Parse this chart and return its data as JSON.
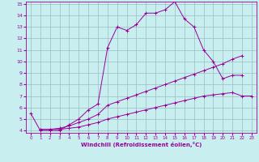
{
  "background_color": "#c8eef0",
  "grid_color": "#9bbcbe",
  "line_color": "#990099",
  "xlim": [
    -0.5,
    23.5
  ],
  "ylim": [
    3.8,
    15.2
  ],
  "xlabel": "Windchill (Refroidissement éolien,°C)",
  "yticks": [
    4,
    5,
    6,
    7,
    8,
    9,
    10,
    11,
    12,
    13,
    14,
    15
  ],
  "xticks": [
    0,
    1,
    2,
    3,
    4,
    5,
    6,
    7,
    8,
    9,
    10,
    11,
    12,
    13,
    14,
    15,
    16,
    17,
    18,
    19,
    20,
    21,
    22,
    23
  ],
  "series1_x": [
    0,
    1,
    2,
    3,
    4,
    5,
    6,
    7,
    8,
    9,
    10,
    11,
    12,
    13,
    14,
    15,
    16,
    17,
    18,
    19,
    20,
    21,
    22
  ],
  "series1_y": [
    5.5,
    4.0,
    4.0,
    4.0,
    4.5,
    5.0,
    5.8,
    6.3,
    11.2,
    13.0,
    12.7,
    13.2,
    14.2,
    14.2,
    14.5,
    15.2,
    13.7,
    13.0,
    11.0,
    10.0,
    8.5,
    8.8,
    8.8
  ],
  "series2_x": [
    1,
    2,
    3,
    4,
    5,
    6,
    7,
    8,
    9,
    10,
    11,
    12,
    13,
    14,
    15,
    16,
    17,
    18,
    19,
    20,
    21,
    22
  ],
  "series2_y": [
    4.1,
    4.1,
    4.2,
    4.4,
    4.7,
    5.0,
    5.4,
    6.2,
    6.5,
    6.8,
    7.1,
    7.4,
    7.7,
    8.0,
    8.3,
    8.6,
    8.9,
    9.2,
    9.5,
    9.8,
    10.2,
    10.5
  ],
  "series3_x": [
    1,
    2,
    3,
    4,
    5,
    6,
    7,
    8,
    9,
    10,
    11,
    12,
    13,
    14,
    15,
    16,
    17,
    18,
    19,
    20,
    21,
    22,
    23
  ],
  "series3_y": [
    4.1,
    4.1,
    4.1,
    4.2,
    4.3,
    4.5,
    4.7,
    5.0,
    5.2,
    5.4,
    5.6,
    5.8,
    6.0,
    6.2,
    6.4,
    6.6,
    6.8,
    7.0,
    7.1,
    7.2,
    7.3,
    7.0,
    7.0
  ]
}
